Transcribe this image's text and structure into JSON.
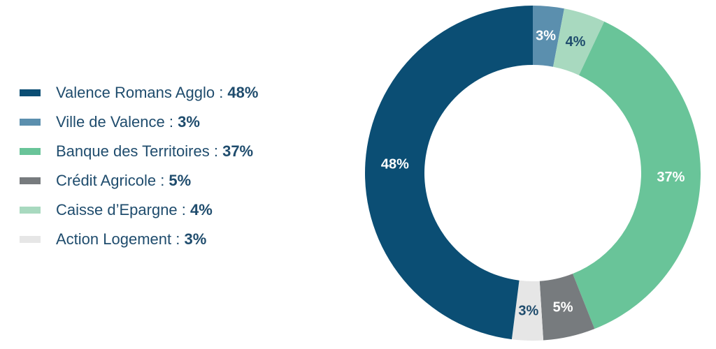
{
  "chart_data": {
    "type": "pie",
    "donut": true,
    "legend_position": "left",
    "series": [
      {
        "name": "Valence Romans Agglo",
        "value": 48,
        "label": "48%",
        "color": "#0b4e74",
        "label_color": "#ffffff"
      },
      {
        "name": "Ville de Valence",
        "value": 3,
        "label": "3%",
        "color": "#5b8fae",
        "label_color": "#ffffff"
      },
      {
        "name": "Banque des Territoires",
        "value": 37,
        "label": "37%",
        "color": "#69c499",
        "label_color": "#ffffff"
      },
      {
        "name": "Crédit Agricole",
        "value": 5,
        "label": "5%",
        "color": "#777b7e",
        "label_color": "#ffffff"
      },
      {
        "name": "Caisse d’Epargne",
        "value": 4,
        "label": "4%",
        "color": "#a8d9bf",
        "label_color": "#1f4c6d"
      },
      {
        "name": "Action Logement",
        "value": 3,
        "label": "3%",
        "color": "#e6e6e6",
        "label_color": "#1f4c6d"
      }
    ],
    "clockwise_order": [
      "Ville de Valence",
      "Caisse d’Epargne",
      "Banque des Territoires",
      "Crédit Agricole",
      "Action Logement",
      "Valence Romans Agglo"
    ]
  },
  "legend": {
    "separator": " : ",
    "items": [
      {
        "label": "Valence Romans Agglo",
        "value": "48%"
      },
      {
        "label": "Ville de Valence",
        "value": "3%"
      },
      {
        "label": "Banque des Territoires",
        "value": "37%"
      },
      {
        "label": "Crédit Agricole",
        "value": "5%"
      },
      {
        "label": "Caisse d’Epargne",
        "value": "4%"
      },
      {
        "label": "Action Logement",
        "value": "3%"
      }
    ]
  }
}
